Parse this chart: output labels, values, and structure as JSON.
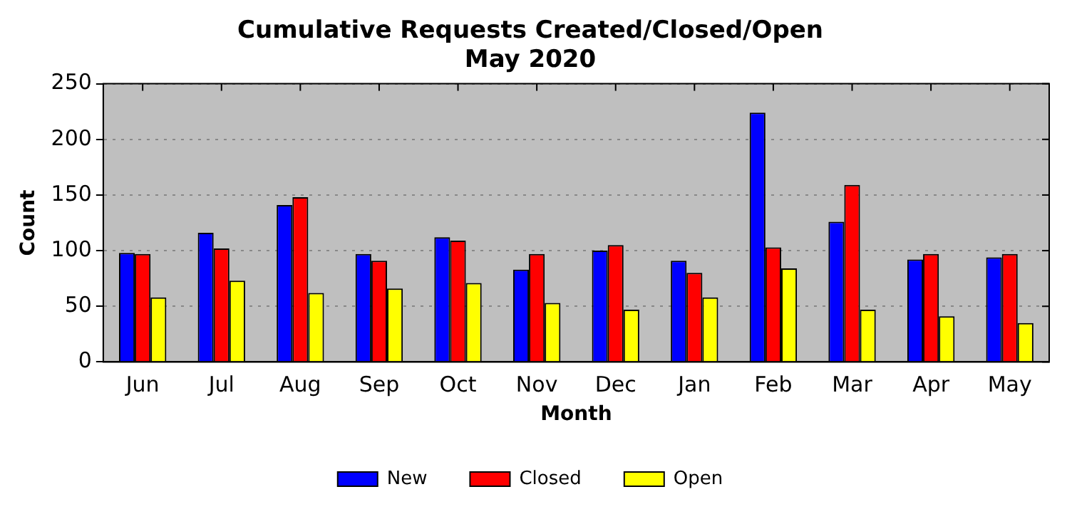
{
  "chart_data": {
    "type": "bar",
    "title": "Cumulative Requests Created/Closed/Open",
    "subtitle": "May 2020",
    "xlabel": "Month",
    "ylabel": "Count",
    "categories": [
      "Jun",
      "Jul",
      "Aug",
      "Sep",
      "Oct",
      "Nov",
      "Dec",
      "Jan",
      "Feb",
      "Mar",
      "Apr",
      "May"
    ],
    "series": [
      {
        "name": "New",
        "color": "#0000ff",
        "values": [
          98,
          116,
          141,
          97,
          112,
          83,
          100,
          91,
          224,
          126,
          92,
          94
        ]
      },
      {
        "name": "Closed",
        "color": "#ff0000",
        "values": [
          97,
          102,
          148,
          91,
          109,
          97,
          105,
          80,
          103,
          159,
          97,
          97
        ]
      },
      {
        "name": "Open",
        "color": "#ffff00",
        "values": [
          58,
          73,
          62,
          66,
          71,
          53,
          47,
          58,
          84,
          47,
          41,
          35
        ]
      }
    ],
    "ylim": [
      0,
      250
    ],
    "yticks": [
      0,
      50,
      100,
      150,
      200,
      250
    ],
    "grid": "y",
    "legend": "bottom"
  }
}
